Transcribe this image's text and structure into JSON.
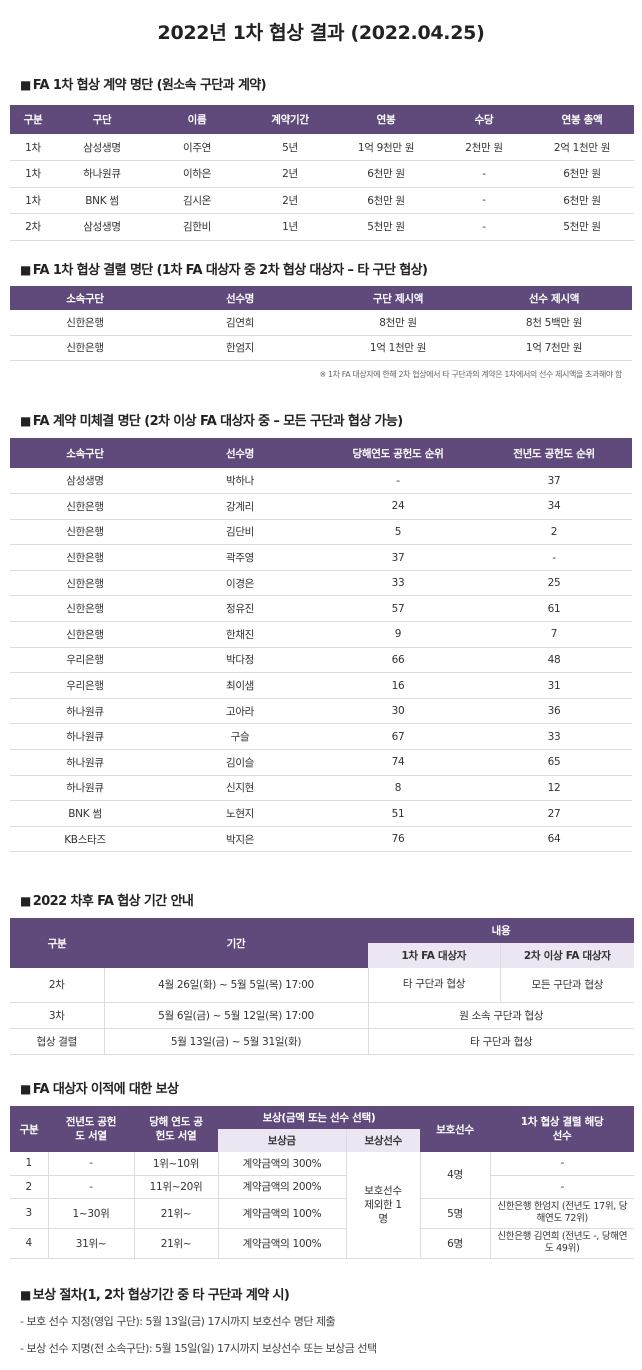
{
  "title": "2022년 1차 협상 결과 (2022.04.25)",
  "sections": {
    "contracts": "FA 1차 협상 계약 명단 (원소속 구단과 계약)",
    "failed": "FA 1차 협상 결렬 명단 (1차 FA 대상자 중 2차 협상 대상자 – 타 구단 협상)",
    "unsigned": "FA 계약 미체결 명단 (2차 이상 FA 대상자 중 – 모든 구단과 협상 가능)",
    "schedule": "2022 차후 FA 협상 기간 안내",
    "compensation": "FA 대상자 이적에 대한 보상",
    "procedure": "보상 절차(1, 2차 협상기간 중 타 구단과 계약 시)"
  },
  "section_marker": "■",
  "contracts": {
    "headers": [
      "구분",
      "구단",
      "이름",
      "계약기간",
      "연봉",
      "수당",
      "연봉 총액"
    ],
    "rows": [
      [
        "1차",
        "삼성생명",
        "이주연",
        "5년",
        "1억 9천만 원",
        "2천만 원",
        "2억 1천만 원"
      ],
      [
        "1차",
        "하나원큐",
        "이하은",
        "2년",
        "6천만 원",
        "-",
        "6천만 원"
      ],
      [
        "1차",
        "BNK 썸",
        "김시온",
        "2년",
        "6천만 원",
        "-",
        "6천만 원"
      ],
      [
        "2차",
        "삼성생명",
        "김한비",
        "1년",
        "5천만 원",
        "-",
        "5천만 원"
      ]
    ]
  },
  "failed": {
    "headers": [
      "소속구단",
      "선수명",
      "구단 제시액",
      "선수 제시액"
    ],
    "rows": [
      [
        "신한은행",
        "김연희",
        "8천만 원",
        "8천 5백만 원"
      ],
      [
        "신한은행",
        "한엄지",
        "1억 1천만 원",
        "1억 7천만 원"
      ]
    ],
    "note": "※ 1차 FA 대상자에 한해 2차 협상에서 타 구단과의 계약은 1차에서의 선수 제시액을 초과해야 함"
  },
  "unsigned": {
    "headers": [
      "소속구단",
      "선수명",
      "당해연도 공헌도 순위",
      "전년도 공헌도 순위"
    ],
    "rows": [
      [
        "삼성생명",
        "박하나",
        "-",
        "37"
      ],
      [
        "신한은행",
        "강계리",
        "24",
        "34"
      ],
      [
        "신한은행",
        "김단비",
        "5",
        "2"
      ],
      [
        "신한은행",
        "곽주영",
        "37",
        "-"
      ],
      [
        "신한은행",
        "이경은",
        "33",
        "25"
      ],
      [
        "신한은행",
        "정유진",
        "57",
        "61"
      ],
      [
        "신한은행",
        "한채진",
        "9",
        "7"
      ],
      [
        "우리은행",
        "박다정",
        "66",
        "48"
      ],
      [
        "우리은행",
        "최이샘",
        "16",
        "31"
      ],
      [
        "하나원큐",
        "고아라",
        "30",
        "36"
      ],
      [
        "하나원큐",
        "구슬",
        "67",
        "33"
      ],
      [
        "하나원큐",
        "김이슬",
        "74",
        "65"
      ],
      [
        "하나원큐",
        "신지현",
        "8",
        "12"
      ],
      [
        "BNK 썸",
        "노현지",
        "51",
        "27"
      ],
      [
        "KB스타즈",
        "박지은",
        "76",
        "64"
      ]
    ]
  },
  "schedule": {
    "h_type": "구분",
    "h_period": "기간",
    "h_content": "내용",
    "h_first": "1차 FA 대상자",
    "h_second": "2차 이상 FA 대상자",
    "r1": {
      "type": "2차",
      "period": "4월 26일(화) ~ 5월 5일(목) 17:00",
      "first": "타 구단과 협상",
      "second": "모든 구단과 협상"
    },
    "r2": {
      "type": "3차",
      "period": "5월 6일(금) ~ 5월 12일(목) 17:00",
      "content": "원 소속 구단과 협상"
    },
    "r3": {
      "type": "협상 결렬",
      "period": "5월 13일(금) ~ 5월 31일(화)",
      "content": "타 구단과 협상"
    }
  },
  "compensation": {
    "h_type": "구분",
    "h_prev": "전년도 공헌도 서열",
    "h_curr": "당해 연도 공헌도 서열",
    "h_comp": "보상(금액 또는 선수 선택)",
    "h_money": "보상금",
    "h_player": "보상선수",
    "h_protect": "보호선수",
    "h_failed": "1차 협상 결렬 해당 선수",
    "player_option": "보호선수 제외한 1명",
    "rows": [
      {
        "type": "1",
        "prev": "-",
        "curr": "1위~10위",
        "money": "계약금액의 300%",
        "failed": "-"
      },
      {
        "type": "2",
        "prev": "-",
        "curr": "11위~20위",
        "money": "계약금액의 200%",
        "failed": "-"
      },
      {
        "type": "3",
        "prev": "1~30위",
        "curr": "21위~",
        "money": "계약금액의 100%",
        "failed": "신한은행 한엄지 (전년도 17위, 당해연도 72위)"
      },
      {
        "type": "4",
        "prev": "31위~",
        "curr": "21위~",
        "money": "계약금액의 100%",
        "failed": "신한은행 김연희 (전년도 -, 당해연도 49위)"
      }
    ],
    "protect": [
      "4명",
      "5명",
      "6명"
    ]
  },
  "procedure": [
    "- 보호 선수 지정(영입 구단): 5월 13일(금) 17시까지 보호선수 명단 제출",
    "- 보상 선수 지명(전 소속구단): 5월 15일(일) 17시까지 보상선수 또는 보상금 선택"
  ],
  "colors": {
    "header": "#5f4a7b",
    "subheader": "#ece6f2",
    "rule": "#dcdcdc"
  }
}
